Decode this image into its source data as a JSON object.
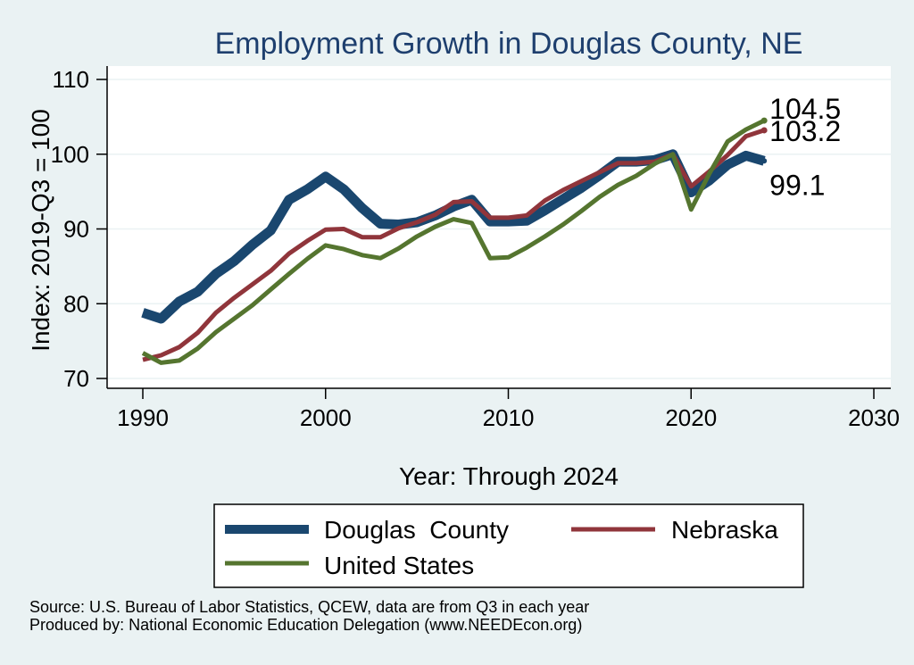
{
  "chart_data": {
    "type": "line",
    "title": "Employment Growth in Douglas County, NE",
    "xlabel": "Year: Through 2024",
    "ylabel": "Index: 2019-Q3 = 100",
    "xlim": [
      1990,
      2030
    ],
    "ylim": [
      70,
      110
    ],
    "xticks": [
      1990,
      2000,
      2010,
      2020,
      2030
    ],
    "yticks": [
      70,
      80,
      90,
      100,
      110
    ],
    "grid": true,
    "legend_position": "bottom",
    "x": [
      1990,
      1991,
      1992,
      1993,
      1994,
      1995,
      1996,
      1997,
      1998,
      1999,
      2000,
      2001,
      2002,
      2003,
      2004,
      2005,
      2006,
      2007,
      2008,
      2009,
      2010,
      2011,
      2012,
      2013,
      2014,
      2015,
      2016,
      2017,
      2018,
      2019,
      2020,
      2021,
      2022,
      2023,
      2024
    ],
    "series": [
      {
        "name": "Douglas  County",
        "color": "#1a476f",
        "values": [
          78.8,
          78.0,
          80.3,
          81.6,
          84.0,
          85.7,
          87.9,
          89.8,
          93.9,
          95.3,
          97.0,
          95.3,
          92.8,
          90.7,
          90.6,
          90.9,
          91.8,
          93.0,
          93.9,
          91.0,
          91.0,
          91.1,
          92.5,
          94.0,
          95.5,
          97.2,
          99.0,
          99.0,
          99.2,
          100.0,
          94.9,
          96.5,
          98.6,
          99.8,
          99.1
        ],
        "end_label": "99.1"
      },
      {
        "name": "Nebraska",
        "color": "#90353b",
        "values": [
          72.5,
          73.1,
          74.2,
          76.1,
          78.8,
          80.8,
          82.6,
          84.4,
          86.7,
          88.4,
          89.9,
          90.0,
          88.9,
          88.9,
          90.1,
          90.9,
          91.9,
          93.6,
          93.7,
          91.5,
          91.5,
          91.8,
          93.8,
          95.2,
          96.4,
          97.6,
          98.8,
          98.8,
          99.0,
          100.0,
          95.7,
          97.7,
          99.9,
          102.4,
          103.2
        ],
        "end_label": "103.2"
      },
      {
        "name": "United States",
        "color": "#55752f",
        "values": [
          73.4,
          72.1,
          72.4,
          74.0,
          76.2,
          78.0,
          79.8,
          81.9,
          84.0,
          86.0,
          87.8,
          87.3,
          86.5,
          86.1,
          87.4,
          89.0,
          90.3,
          91.3,
          90.8,
          86.1,
          86.2,
          87.5,
          89.0,
          90.6,
          92.4,
          94.3,
          95.9,
          97.1,
          98.7,
          100.0,
          92.6,
          97.4,
          101.7,
          103.3,
          104.5
        ],
        "end_label": "104.5"
      }
    ]
  },
  "legend": {
    "douglas_label": "Douglas  County",
    "nebraska_label": "Nebraska",
    "us_label": "United States"
  },
  "footer": {
    "source": "Source: U.S. Bureau of Labor Statistics, QCEW, data are from Q3 in each year",
    "produced_by": "Produced by: National Economic Education Delegation (www.NEEDEcon.org)"
  }
}
